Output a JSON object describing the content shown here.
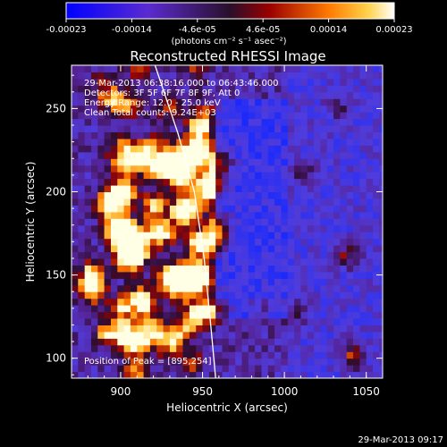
{
  "chart_data": {
    "type": "heatmap",
    "title": "Reconstructed RHESSI Image",
    "xlabel": "Heliocentric X (arcsec)",
    "ylabel": "Heliocentric Y (arcsec)",
    "xlim": [
      870,
      1060
    ],
    "ylim": [
      88,
      276
    ],
    "x_ticks": [
      {
        "value": 900,
        "label": "900"
      },
      {
        "value": 950,
        "label": "950"
      },
      {
        "value": 1000,
        "label": "1000"
      },
      {
        "value": 1050,
        "label": "1050"
      }
    ],
    "y_ticks": [
      {
        "value": 100,
        "label": "100"
      },
      {
        "value": 150,
        "label": "150"
      },
      {
        "value": 200,
        "label": "200"
      },
      {
        "value": 250,
        "label": "250"
      }
    ],
    "colorbar": {
      "range": [
        -0.00023,
        0.00023
      ],
      "ticks": [
        "-0.00023",
        "-0.00014",
        "-4.6e-05",
        "4.6e-05",
        "0.00014",
        "0.00023"
      ],
      "unit_label": "(photons cm⁻² s⁻¹ asec⁻²)"
    },
    "info_lines": [
      "29-Mar-2013 06:38:16.000 to 06:43:46.000",
      "Detectors: 3F 5F 6F 7F 8F 9F, Att 0",
      "Energy Range: 12.0 - 25.0 keV",
      "Clean     Total counts: 9.24E+03"
    ],
    "peak_label": "Position of Peak = [895,254]",
    "limb_points": [
      [
        921,
        276
      ],
      [
        935,
        235
      ],
      [
        945,
        200
      ],
      [
        951,
        160
      ],
      [
        955,
        120
      ],
      [
        958,
        88
      ]
    ],
    "footer_date": "29-Mar-2013 09:17"
  }
}
